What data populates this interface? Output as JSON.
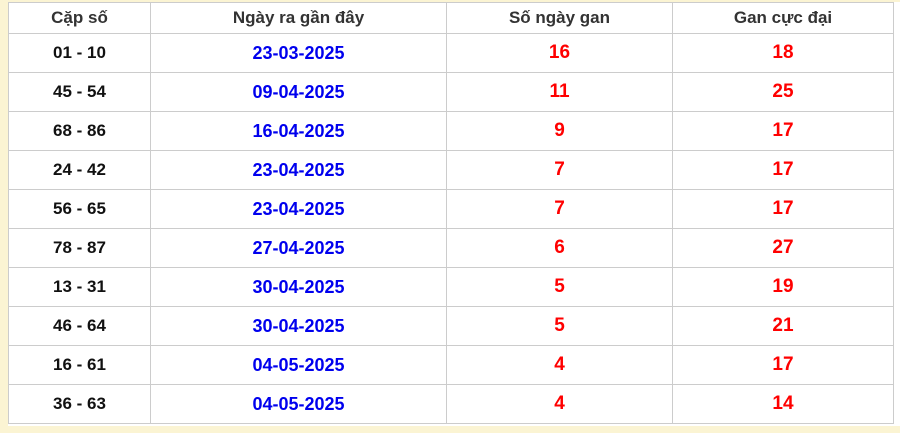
{
  "table": {
    "columns": [
      "Cặp số",
      "Ngày ra gần đây",
      "Số ngày gan",
      "Gan cực đại"
    ],
    "rows": [
      {
        "pair": "01 - 10",
        "last_date": "23-03-2025",
        "gan_days": "16",
        "max_gan": "18"
      },
      {
        "pair": "45 - 54",
        "last_date": "09-04-2025",
        "gan_days": "11",
        "max_gan": "25"
      },
      {
        "pair": "68 - 86",
        "last_date": "16-04-2025",
        "gan_days": "9",
        "max_gan": "17"
      },
      {
        "pair": "24 - 42",
        "last_date": "23-04-2025",
        "gan_days": "7",
        "max_gan": "17"
      },
      {
        "pair": "56 - 65",
        "last_date": "23-04-2025",
        "gan_days": "7",
        "max_gan": "17"
      },
      {
        "pair": "78 - 87",
        "last_date": "27-04-2025",
        "gan_days": "6",
        "max_gan": "27"
      },
      {
        "pair": "13 - 31",
        "last_date": "30-04-2025",
        "gan_days": "5",
        "max_gan": "19"
      },
      {
        "pair": "46 - 64",
        "last_date": "30-04-2025",
        "gan_days": "5",
        "max_gan": "21"
      },
      {
        "pair": "16 - 61",
        "last_date": "04-05-2025",
        "gan_days": "4",
        "max_gan": "17"
      },
      {
        "pair": "36 - 63",
        "last_date": "04-05-2025",
        "gan_days": "4",
        "max_gan": "14"
      }
    ]
  },
  "colors": {
    "page_bg": "#FBF4D3",
    "cell_bg": "#FFFFFF",
    "border": "#CCCCCC",
    "header_text": "#333333",
    "pair_text": "#111111",
    "date_link": "#0000EE",
    "gan_value": "#FF0000"
  }
}
